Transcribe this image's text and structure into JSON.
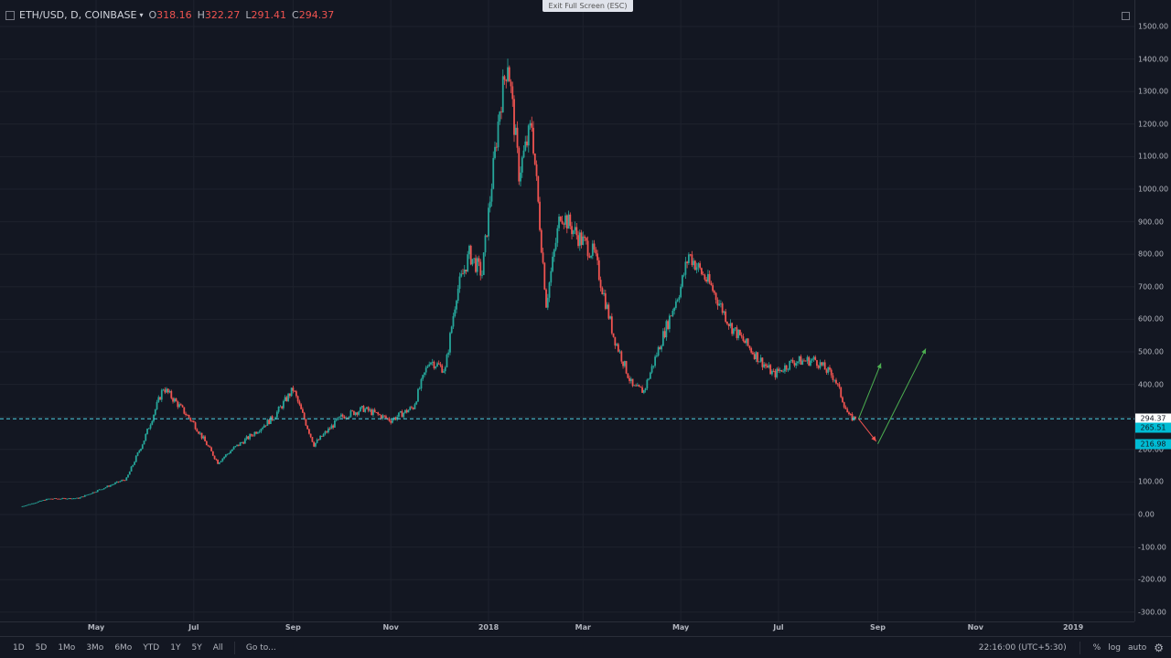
{
  "header": {
    "symbol": "ETH/USD, D, COINBASE",
    "open_label": "O",
    "open": "318.16",
    "high_label": "H",
    "high": "322.27",
    "low_label": "L",
    "low": "291.41",
    "close_label": "C",
    "close": "294.37",
    "caret_icon": "caret-down-icon",
    "layout_icon": "square-icon"
  },
  "exit_fullscreen": "Exit Full Screen (ESC)",
  "colors": {
    "background": "#131722",
    "grid": "#1e222d",
    "up": "#26a69a",
    "down": "#ef5350",
    "dashed_line": "#4dd0e1",
    "arrow_green": "#4caf50",
    "arrow_red": "#ef5350",
    "tag_cyan": "#00bcd4"
  },
  "price_axis": {
    "labels": [
      "1500.00",
      "1400.00",
      "1300.00",
      "1200.00",
      "1100.00",
      "1000.00",
      "900.00",
      "800.00",
      "700.00",
      "600.00",
      "500.00",
      "400.00",
      "300.00",
      "200.00",
      "100.00",
      "0.00",
      "-100.00",
      "-200.00",
      "-300.00"
    ],
    "tags": [
      {
        "text": "294.37",
        "style": "last"
      },
      {
        "text": "265.51",
        "style": "cyan"
      },
      {
        "text": "216.98",
        "style": "cyan"
      }
    ]
  },
  "time_axis": {
    "labels": [
      "May",
      "Jul",
      "Sep",
      "Nov",
      "2018",
      "Mar",
      "May",
      "Jul",
      "Sep",
      "Nov",
      "2019"
    ]
  },
  "toolbar": {
    "ranges": [
      "1D",
      "5D",
      "1Mo",
      "3Mo",
      "6Mo",
      "YTD",
      "1Y",
      "5Y",
      "All"
    ],
    "goto": "Go to...",
    "clock": "22:16:00 (UTC+5:30)",
    "percent": "%",
    "log": "log",
    "auto": "auto",
    "settings_icon": "gear-icon"
  },
  "chart_data": {
    "type": "candlestick",
    "title": "ETH/USD, D, COINBASE",
    "ylim": [
      -300,
      1500
    ],
    "y_unit": "USD",
    "last_close": 294.37,
    "last_ohlc": {
      "open": 318.16,
      "high": 322.27,
      "low": 291.41,
      "close": 294.37
    },
    "series": [
      {
        "name": "ETH/USD",
        "points": [
          [
            "2017-03-15",
            24
          ],
          [
            "2017-04-01",
            48
          ],
          [
            "2017-04-20",
            50
          ],
          [
            "2017-05-05",
            80
          ],
          [
            "2017-05-20",
            110
          ],
          [
            "2017-05-31",
            230
          ],
          [
            "2017-06-12",
            390
          ],
          [
            "2017-06-20",
            345
          ],
          [
            "2017-07-01",
            280
          ],
          [
            "2017-07-16",
            160
          ],
          [
            "2017-07-25",
            200
          ],
          [
            "2017-08-05",
            240
          ],
          [
            "2017-08-20",
            300
          ],
          [
            "2017-09-01",
            385
          ],
          [
            "2017-09-14",
            215
          ],
          [
            "2017-10-01",
            300
          ],
          [
            "2017-10-15",
            325
          ],
          [
            "2017-11-01",
            290
          ],
          [
            "2017-11-15",
            330
          ],
          [
            "2017-11-25",
            475
          ],
          [
            "2017-12-05",
            445
          ],
          [
            "2017-12-12",
            680
          ],
          [
            "2017-12-20",
            800
          ],
          [
            "2017-12-28",
            740
          ],
          [
            "2018-01-08",
            1250
          ],
          [
            "2018-01-13",
            1400
          ],
          [
            "2018-01-20",
            1050
          ],
          [
            "2018-01-28",
            1200
          ],
          [
            "2018-02-06",
            650
          ],
          [
            "2018-02-15",
            930
          ],
          [
            "2018-02-25",
            860
          ],
          [
            "2018-03-08",
            800
          ],
          [
            "2018-03-20",
            550
          ],
          [
            "2018-04-01",
            390
          ],
          [
            "2018-04-08",
            380
          ],
          [
            "2018-04-20",
            550
          ],
          [
            "2018-05-01",
            700
          ],
          [
            "2018-05-06",
            800
          ],
          [
            "2018-05-20",
            700
          ],
          [
            "2018-06-01",
            580
          ],
          [
            "2018-06-15",
            500
          ],
          [
            "2018-06-28",
            430
          ],
          [
            "2018-07-10",
            470
          ],
          [
            "2018-07-24",
            475
          ],
          [
            "2018-08-05",
            420
          ],
          [
            "2018-08-14",
            300
          ],
          [
            "2018-08-18",
            294.37
          ]
        ]
      }
    ],
    "horizontal_lines": [
      {
        "price": 294.37,
        "style": "dashed"
      }
    ],
    "annotations": [
      {
        "type": "arrow",
        "color": "green",
        "from": [
          "2018-08-20",
          294
        ],
        "to": [
          "2018-09-03",
          465
        ]
      },
      {
        "type": "arrow",
        "color": "green",
        "from": [
          "2018-09-01",
          216.98
        ],
        "to": [
          "2018-10-01",
          510
        ]
      },
      {
        "type": "arrow",
        "color": "red",
        "from": [
          "2018-08-20",
          294
        ],
        "to": [
          "2018-08-31",
          225
        ]
      }
    ],
    "grid": true
  }
}
